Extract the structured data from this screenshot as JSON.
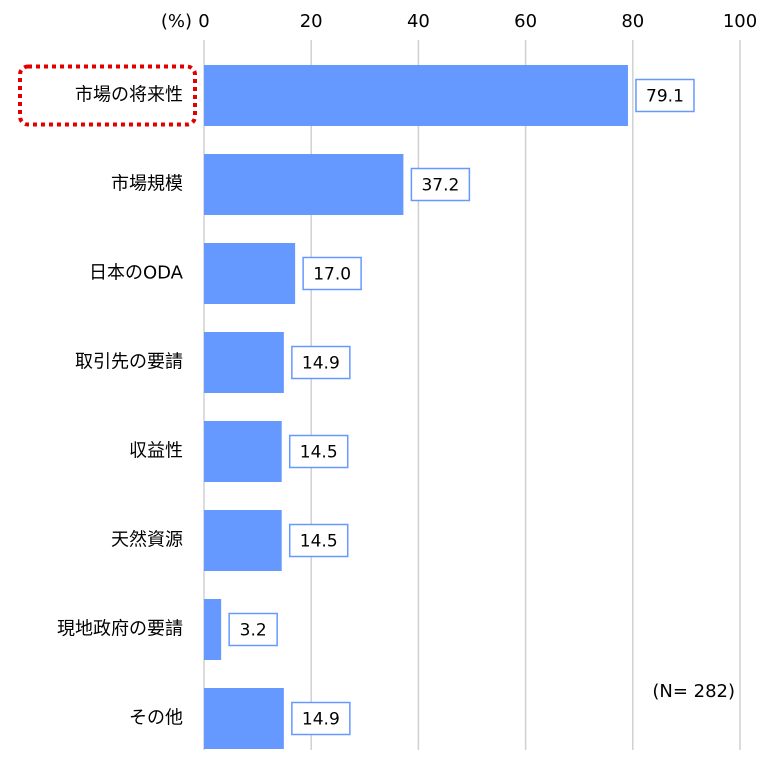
{
  "chart_data": {
    "type": "bar",
    "orientation": "horizontal",
    "unit_label": "(%)",
    "note": "(N= 282)",
    "categories": [
      "市場の将来性",
      "市場規模",
      "日本のODA",
      "取引先の要請",
      "収益性",
      "天然資源",
      "現地政府の要請",
      "その他"
    ],
    "values": [
      79.1,
      37.2,
      17.0,
      14.9,
      14.5,
      14.5,
      3.2,
      14.9
    ],
    "value_labels": [
      "79.1",
      "37.2",
      "17.0",
      "14.9",
      "14.5",
      "14.5",
      "3.2",
      "14.9"
    ],
    "color": "#6699ff",
    "highlight_index": 0,
    "highlight_color": "#e00000",
    "xlim": [
      0,
      100
    ],
    "xticks": [
      0,
      20,
      40,
      60,
      80,
      100
    ],
    "grid": true
  }
}
